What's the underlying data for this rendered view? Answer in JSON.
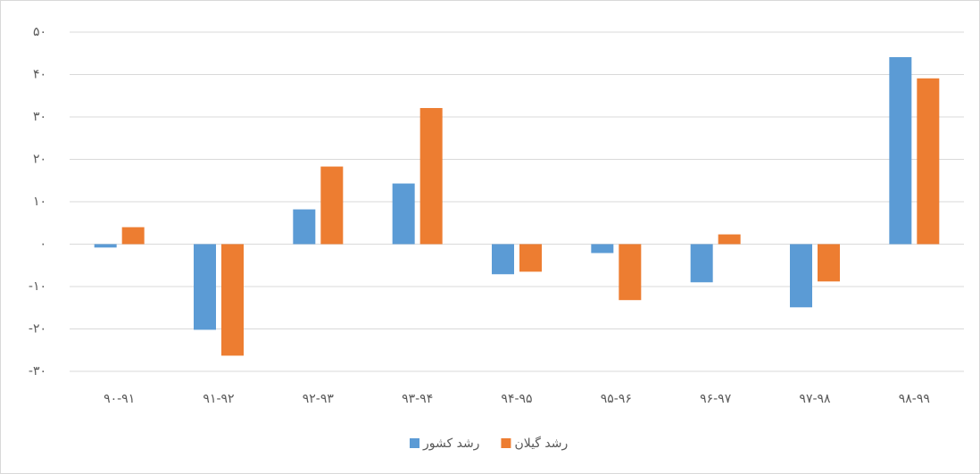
{
  "chart_data": {
    "type": "bar",
    "categories": [
      "۹۰-۹۱",
      "۹۱-۹۲",
      "۹۲-۹۳",
      "۹۳-۹۴",
      "۹۴-۹۵",
      "۹۵-۹۶",
      "۹۶-۹۷",
      "۹۷-۹۸",
      "۹۸-۹۹"
    ],
    "series": [
      {
        "name": "رشد کشور",
        "color": "#5b9bd5",
        "values": [
          -0.8,
          -20.2,
          8.2,
          14.3,
          -7.1,
          -2.1,
          -9.0,
          -14.9,
          44.1
        ]
      },
      {
        "name": "رشد گیلان",
        "color": "#ed7d31",
        "values": [
          4.0,
          -26.3,
          18.3,
          32.1,
          -6.5,
          -13.2,
          2.3,
          -8.8,
          39.1
        ]
      }
    ],
    "ylim": [
      -30,
      50
    ],
    "yticks": [
      {
        "value": -30,
        "label": "-۳۰"
      },
      {
        "value": -20,
        "label": "-۲۰"
      },
      {
        "value": -10,
        "label": "-۱۰"
      },
      {
        "value": 0,
        "label": "۰"
      },
      {
        "value": 10,
        "label": "۱۰"
      },
      {
        "value": 20,
        "label": "۲۰"
      },
      {
        "value": 30,
        "label": "۳۰"
      },
      {
        "value": 40,
        "label": "۴۰"
      },
      {
        "value": 50,
        "label": "۵۰"
      }
    ],
    "grid": true,
    "legend": "bottom"
  }
}
